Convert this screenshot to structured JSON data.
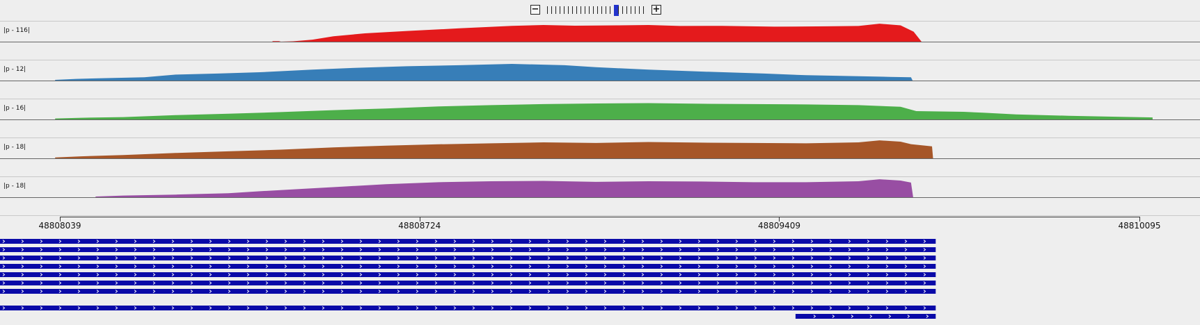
{
  "zoom": {
    "minus_label": "−",
    "plus_label": "+",
    "levels": 24,
    "selected_level": 16
  },
  "tracks": [
    {
      "label": "|p - 116|",
      "color": "#e41a1c",
      "profile": [
        [
          48808444,
          0.03
        ],
        [
          48808456,
          0.03
        ],
        [
          48808460,
          0.0
        ],
        [
          48808483,
          0.02
        ],
        [
          48808520,
          0.12
        ],
        [
          48808560,
          0.32
        ],
        [
          48808620,
          0.5
        ],
        [
          48808700,
          0.64
        ],
        [
          48808800,
          0.8
        ],
        [
          48808900,
          0.95
        ],
        [
          48808960,
          1.0
        ],
        [
          48809020,
          0.96
        ],
        [
          48809100,
          0.98
        ],
        [
          48809160,
          1.0
        ],
        [
          48809220,
          0.94
        ],
        [
          48809300,
          0.95
        ],
        [
          48809400,
          0.9
        ],
        [
          48809500,
          0.92
        ],
        [
          48809560,
          0.94
        ],
        [
          48809600,
          1.08
        ],
        [
          48809640,
          0.98
        ],
        [
          48809665,
          0.6
        ],
        [
          48809680,
          0.0
        ]
      ]
    },
    {
      "label": "|p - 12|",
      "color": "#377eb8",
      "profile": [
        [
          48808030,
          0.04
        ],
        [
          48808070,
          0.1
        ],
        [
          48808120,
          0.14
        ],
        [
          48808200,
          0.2
        ],
        [
          48808260,
          0.36
        ],
        [
          48808340,
          0.42
        ],
        [
          48808420,
          0.5
        ],
        [
          48808520,
          0.66
        ],
        [
          48808600,
          0.76
        ],
        [
          48808700,
          0.86
        ],
        [
          48808800,
          0.92
        ],
        [
          48808900,
          1.0
        ],
        [
          48809000,
          0.92
        ],
        [
          48809060,
          0.8
        ],
        [
          48809160,
          0.66
        ],
        [
          48809260,
          0.54
        ],
        [
          48809380,
          0.42
        ],
        [
          48809460,
          0.32
        ],
        [
          48809560,
          0.26
        ],
        [
          48809620,
          0.22
        ],
        [
          48809660,
          0.2
        ],
        [
          48809663,
          0.0
        ]
      ]
    },
    {
      "label": "|p - 16|",
      "color": "#4daf4a",
      "profile": [
        [
          48808030,
          0.06
        ],
        [
          48808080,
          0.1
        ],
        [
          48808160,
          0.14
        ],
        [
          48808260,
          0.26
        ],
        [
          48808360,
          0.34
        ],
        [
          48808460,
          0.44
        ],
        [
          48808560,
          0.56
        ],
        [
          48808660,
          0.66
        ],
        [
          48808760,
          0.78
        ],
        [
          48808860,
          0.86
        ],
        [
          48808960,
          0.92
        ],
        [
          48809060,
          0.96
        ],
        [
          48809160,
          0.98
        ],
        [
          48809260,
          0.94
        ],
        [
          48809360,
          0.92
        ],
        [
          48809460,
          0.9
        ],
        [
          48809560,
          0.86
        ],
        [
          48809640,
          0.76
        ],
        [
          48809670,
          0.5
        ],
        [
          48809760,
          0.46
        ],
        [
          48809800,
          0.4
        ],
        [
          48809860,
          0.3
        ],
        [
          48809960,
          0.22
        ],
        [
          48810060,
          0.16
        ],
        [
          48810120,
          0.12
        ]
      ]
    },
    {
      "label": "|p - 18|",
      "color": "#a65628",
      "profile": [
        [
          48808030,
          0.05
        ],
        [
          48808080,
          0.12
        ],
        [
          48808160,
          0.2
        ],
        [
          48808260,
          0.32
        ],
        [
          48808360,
          0.42
        ],
        [
          48808460,
          0.52
        ],
        [
          48808560,
          0.66
        ],
        [
          48808660,
          0.76
        ],
        [
          48808760,
          0.84
        ],
        [
          48808860,
          0.9
        ],
        [
          48808960,
          0.96
        ],
        [
          48809060,
          0.92
        ],
        [
          48809160,
          0.98
        ],
        [
          48809260,
          0.94
        ],
        [
          48809360,
          0.92
        ],
        [
          48809460,
          0.9
        ],
        [
          48809560,
          0.96
        ],
        [
          48809600,
          1.08
        ],
        [
          48809640,
          1.0
        ],
        [
          48809660,
          0.85
        ],
        [
          48809700,
          0.72
        ],
        [
          48809702,
          0.0
        ]
      ]
    },
    {
      "label": "|p - 18|",
      "color": "#984ea3",
      "profile": [
        [
          48808107,
          0.04
        ],
        [
          48808160,
          0.1
        ],
        [
          48808260,
          0.16
        ],
        [
          48808360,
          0.24
        ],
        [
          48808420,
          0.36
        ],
        [
          48808500,
          0.5
        ],
        [
          48808580,
          0.64
        ],
        [
          48808660,
          0.78
        ],
        [
          48808760,
          0.9
        ],
        [
          48808860,
          0.96
        ],
        [
          48808960,
          0.98
        ],
        [
          48809060,
          0.92
        ],
        [
          48809160,
          0.96
        ],
        [
          48809260,
          0.94
        ],
        [
          48809360,
          0.9
        ],
        [
          48809460,
          0.9
        ],
        [
          48809560,
          0.96
        ],
        [
          48809600,
          1.08
        ],
        [
          48809640,
          1.0
        ],
        [
          48809660,
          0.88
        ],
        [
          48809664,
          0.0
        ]
      ]
    }
  ],
  "ruler": {
    "labels": [
      "48808039",
      "48808724",
      "48809409",
      "48810095"
    ],
    "positions": [
      48808039,
      48808724,
      48809409,
      48810095
    ]
  },
  "features": {
    "color": "#0a0aa8",
    "rows": [
      {
        "start": 48807925,
        "end": 48809707
      },
      {
        "start": 48807925,
        "end": 48809707
      },
      {
        "start": 48807925,
        "end": 48809707
      },
      {
        "start": 48807925,
        "end": 48809707
      },
      {
        "start": 48807925,
        "end": 48809707
      },
      {
        "start": 48807925,
        "end": 48809707
      },
      {
        "start": 48807925,
        "end": 48809707
      },
      null,
      {
        "start": 48807925,
        "end": 48809707
      },
      {
        "start": 48809440,
        "end": 48809707
      }
    ]
  }
}
